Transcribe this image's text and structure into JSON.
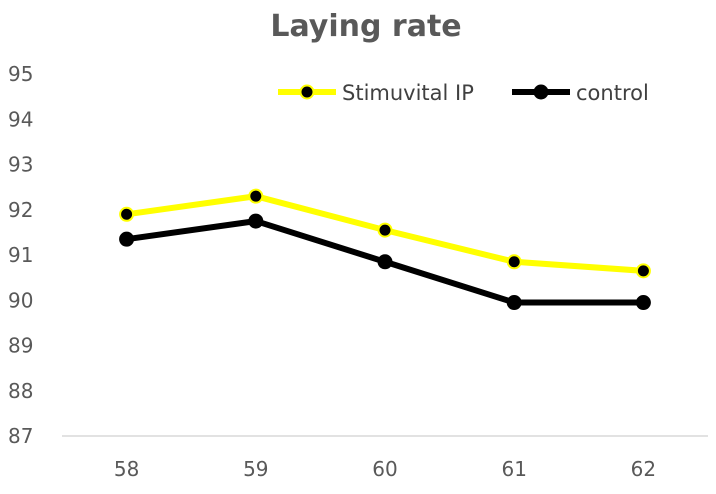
{
  "chart_data": {
    "type": "line",
    "title": "Laying rate",
    "x": [
      "58",
      "59",
      "60",
      "61",
      "62"
    ],
    "ylim": [
      87,
      95
    ],
    "yticks": [
      87,
      88,
      89,
      90,
      91,
      92,
      93,
      94,
      95
    ],
    "grid": false,
    "legend": "top-right",
    "series": [
      {
        "name": "Stimuvital IP",
        "values": [
          91.9,
          92.3,
          91.55,
          90.85,
          90.65
        ],
        "color": "#FFFF00"
      },
      {
        "name": "control",
        "values": [
          91.35,
          91.75,
          90.85,
          89.95,
          89.95
        ],
        "color": "#000000"
      }
    ]
  }
}
